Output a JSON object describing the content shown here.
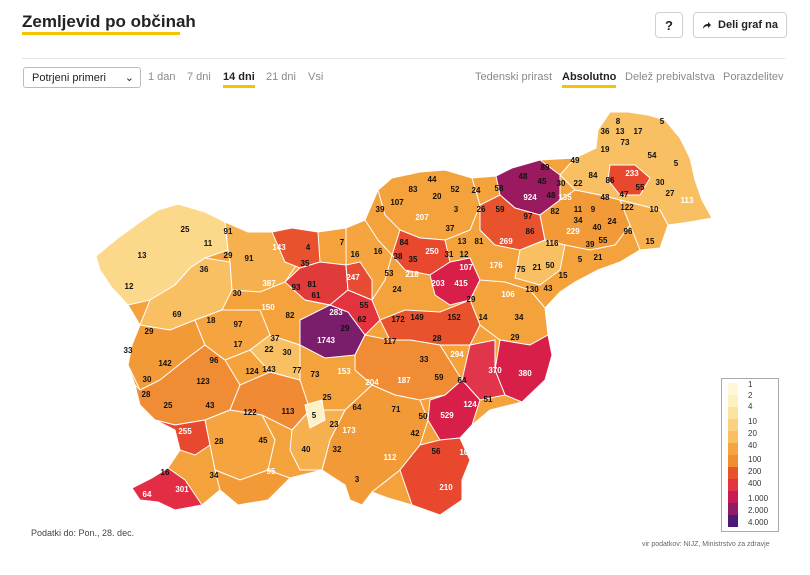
{
  "header": {
    "title": "Zemljevid po občinah",
    "help_label": "?",
    "share_label": "Deli graf na"
  },
  "controls": {
    "select_value": "Potrjeni primeri",
    "range_tabs": [
      "1 dan",
      "7 dni",
      "14 dni",
      "21 dni",
      "Vsi"
    ],
    "range_active": "14 dni",
    "mode_tabs": [
      "Tedenski prirast",
      "Absolutno",
      "Delež prebivalstva",
      "Porazdelitev"
    ],
    "mode_active": "Absolutno"
  },
  "map": {
    "labels": [
      "8",
      "5",
      "36",
      "13",
      "17",
      "19",
      "73",
      "54",
      "5",
      "233",
      "30",
      "113",
      "89",
      "49",
      "48",
      "45",
      "30",
      "22",
      "84",
      "86",
      "924",
      "48",
      "47",
      "27",
      "55",
      "135",
      "82",
      "11",
      "9",
      "48",
      "122",
      "10",
      "97",
      "34",
      "24",
      "96",
      "229",
      "40",
      "86",
      "116",
      "39",
      "55",
      "15",
      "21",
      "50",
      "5",
      "21",
      "75",
      "15",
      "130",
      "43",
      "83",
      "44",
      "52",
      "24",
      "58",
      "39",
      "20",
      "3",
      "26",
      "59",
      "107",
      "207",
      "37",
      "13",
      "81",
      "269",
      "84",
      "250",
      "12",
      "25",
      "91",
      "143",
      "4",
      "7",
      "38",
      "35",
      "31",
      "203",
      "415",
      "107",
      "176",
      "13",
      "11",
      "29",
      "91",
      "16",
      "16",
      "36",
      "30",
      "387",
      "35",
      "81",
      "247",
      "24",
      "53",
      "218",
      "106",
      "12",
      "69",
      "150",
      "93",
      "61",
      "283",
      "55",
      "172",
      "149",
      "152",
      "14",
      "29",
      "18",
      "97",
      "82",
      "62",
      "34",
      "29",
      "33",
      "17",
      "37",
      "1743",
      "29",
      "117",
      "28",
      "29",
      "142",
      "22",
      "30",
      "294",
      "77",
      "73",
      "153",
      "33",
      "370",
      "380",
      "96",
      "124",
      "143",
      "30",
      "204",
      "187",
      "59",
      "64",
      "123",
      "28",
      "43",
      "122",
      "113",
      "5",
      "25",
      "71",
      "50",
      "529",
      "51",
      "25",
      "23",
      "64",
      "124",
      "255",
      "28",
      "45",
      "40",
      "32",
      "173",
      "42",
      "107",
      "16",
      "34",
      "95",
      "112",
      "56",
      "3",
      "64",
      "301",
      "210"
    ],
    "legend_values": [
      "1",
      "2",
      "4",
      "10",
      "20",
      "40",
      "100",
      "200",
      "400",
      "1.000",
      "2.000",
      "4.000"
    ]
  },
  "footer": {
    "date_note": "Podatki do: Pon., 28. dec.",
    "source": "vir podatkov: NIJZ, Ministrstvo za zdravje"
  }
}
